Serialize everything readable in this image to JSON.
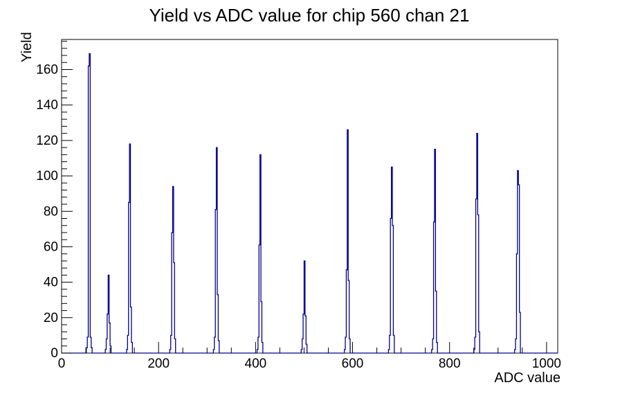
{
  "title": "Yield vs ADC value for chip 560 chan 21",
  "colors": {
    "histogram_line": "#00008B",
    "axis": "#000000",
    "background": "#ffffff"
  },
  "chart_data": {
    "type": "bar",
    "subtype": "root-style-histogram-spikes",
    "title": "Yield vs ADC value for chip 560 chan 21",
    "xlabel": "ADC value",
    "ylabel": "Yield",
    "xlim": [
      0,
      1023
    ],
    "ylim": [
      0,
      177
    ],
    "grid": false,
    "legend": "none",
    "x_major_ticks": [
      0,
      200,
      400,
      600,
      800,
      1000
    ],
    "x_minor_step": 50,
    "y_major_ticks": [
      0,
      20,
      40,
      60,
      80,
      100,
      120,
      140,
      160
    ],
    "y_minor_step": 4,
    "bin_width_adc": 2,
    "peaks": [
      {
        "center": 58,
        "height": 169,
        "bins": [
          3,
          9,
          162,
          169,
          9,
          3
        ]
      },
      {
        "center": 97,
        "height": 44,
        "bins": [
          2,
          8,
          22,
          44,
          17,
          4
        ]
      },
      {
        "center": 141,
        "height": 118,
        "bins": [
          2,
          10,
          85,
          118,
          26,
          6
        ]
      },
      {
        "center": 230,
        "height": 94,
        "bins": [
          2,
          10,
          68,
          94,
          51,
          8
        ]
      },
      {
        "center": 320,
        "height": 116,
        "bins": [
          2,
          9,
          81,
          116,
          33,
          7
        ]
      },
      {
        "center": 410,
        "height": 112,
        "bins": [
          2,
          9,
          61,
          112,
          29,
          6
        ]
      },
      {
        "center": 501,
        "height": 52,
        "bins": [
          2,
          8,
          22,
          52,
          21,
          5
        ]
      },
      {
        "center": 590,
        "height": 126,
        "bins": [
          2,
          9,
          47,
          126,
          41,
          8
        ]
      },
      {
        "center": 681,
        "height": 105,
        "bins": [
          2,
          10,
          76,
          105,
          72,
          10
        ]
      },
      {
        "center": 770,
        "height": 115,
        "bins": [
          2,
          8,
          74,
          115,
          35,
          6
        ]
      },
      {
        "center": 857,
        "height": 124,
        "bins": [
          2,
          9,
          87,
          124,
          78,
          12
        ]
      },
      {
        "center": 941,
        "height": 103,
        "bins": [
          2,
          8,
          56,
          103,
          95,
          23
        ]
      }
    ]
  }
}
